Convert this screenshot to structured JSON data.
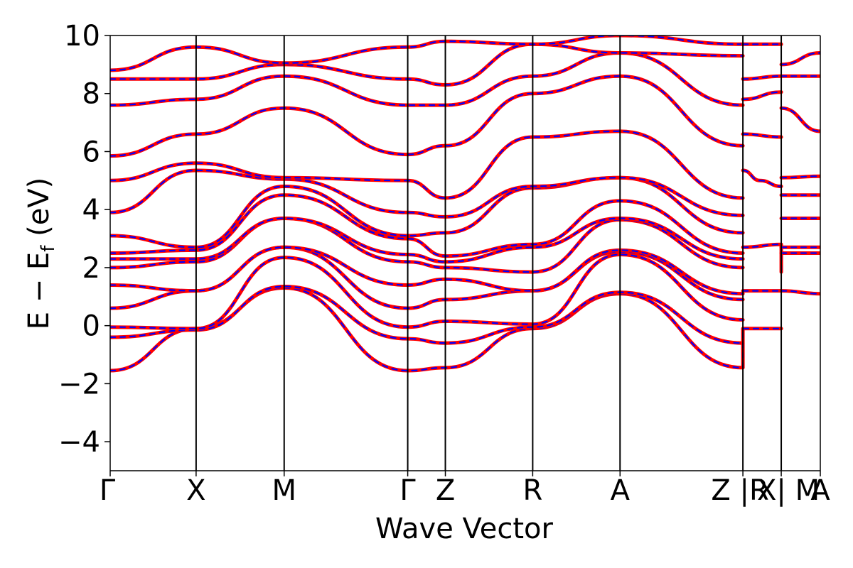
{
  "chart_data": {
    "type": "line",
    "title": "",
    "xlabel": "Wave Vector",
    "ylabel": "E − E_f (eV)",
    "ylabel_main": "E − E",
    "ylabel_sub": "f",
    "ylabel_unit": " (eV)",
    "ylim": [
      -5,
      10
    ],
    "yticks": [
      -4,
      -2,
      0,
      2,
      4,
      6,
      8,
      10
    ],
    "ytick_labels": [
      "−4",
      "−2",
      "0",
      "2",
      "4",
      "6",
      "8",
      "10"
    ],
    "xlim": [
      0,
      1
    ],
    "kpoint_positions": [
      0,
      0.121,
      0.245,
      0.419,
      0.472,
      0.595,
      0.718,
      0.891,
      0.945,
      1.0
    ],
    "kpoint_labels": [
      "Γ",
      "X",
      "M",
      "Γ",
      "Z",
      "R",
      "A",
      "Z |R",
      "X| M",
      "A"
    ],
    "grid": false,
    "legend": "none",
    "colors": {
      "series_red": "#ff0000",
      "series_blue": "#0000ff",
      "vlines": "#000000"
    },
    "series": [
      {
        "color": "#ff0000",
        "style": "solid"
      },
      {
        "color": "#0000ff",
        "style": "dashed"
      }
    ],
    "bands": [
      [
        [
          0,
          -1.55
        ],
        [
          0.121,
          -0.1
        ],
        [
          0.245,
          1.3
        ],
        [
          0.419,
          -1.55
        ],
        [
          0.472,
          -1.45
        ],
        [
          0.595,
          -0.1
        ],
        [
          0.718,
          1.1
        ],
        [
          0.891,
          -1.45
        ]
      ],
      [
        [
          0,
          -0.4
        ],
        [
          0.121,
          -0.15
        ],
        [
          0.245,
          1.35
        ],
        [
          0.419,
          -0.45
        ],
        [
          0.472,
          -0.6
        ],
        [
          0.595,
          -0.05
        ],
        [
          0.718,
          1.15
        ],
        [
          0.891,
          -0.6
        ]
      ],
      [
        [
          0,
          -0.05
        ],
        [
          0.121,
          -0.1
        ],
        [
          0.245,
          2.35
        ],
        [
          0.419,
          -0.05
        ],
        [
          0.472,
          0.15
        ],
        [
          0.595,
          0.05
        ],
        [
          0.718,
          2.45
        ],
        [
          0.891,
          0.2
        ]
      ],
      [
        [
          0,
          0.6
        ],
        [
          0.121,
          1.2
        ],
        [
          0.245,
          2.7
        ],
        [
          0.419,
          0.6
        ],
        [
          0.472,
          0.9
        ],
        [
          0.595,
          1.2
        ],
        [
          0.718,
          2.55
        ],
        [
          0.891,
          0.9
        ]
      ],
      [
        [
          0,
          1.4
        ],
        [
          0.121,
          1.2
        ],
        [
          0.245,
          2.7
        ],
        [
          0.419,
          1.4
        ],
        [
          0.472,
          1.6
        ],
        [
          0.595,
          1.2
        ],
        [
          0.718,
          2.6
        ],
        [
          0.891,
          1.1
        ]
      ],
      [
        [
          0,
          2.0
        ],
        [
          0.121,
          2.2
        ],
        [
          0.245,
          3.7
        ],
        [
          0.419,
          2.2
        ],
        [
          0.472,
          2.0
        ],
        [
          0.595,
          1.85
        ],
        [
          0.718,
          3.65
        ],
        [
          0.891,
          2.0
        ]
      ],
      [
        [
          0,
          2.3
        ],
        [
          0.121,
          2.3
        ],
        [
          0.245,
          3.7
        ],
        [
          0.419,
          2.45
        ],
        [
          0.472,
          2.2
        ],
        [
          0.595,
          2.7
        ],
        [
          0.718,
          3.7
        ],
        [
          0.891,
          2.3
        ]
      ],
      [
        [
          0,
          2.5
        ],
        [
          0.121,
          2.6
        ],
        [
          0.245,
          4.5
        ],
        [
          0.419,
          3.0
        ],
        [
          0.472,
          2.4
        ],
        [
          0.595,
          2.8
        ],
        [
          0.718,
          4.3
        ],
        [
          0.891,
          2.5
        ]
      ],
      [
        [
          0,
          3.1
        ],
        [
          0.121,
          2.7
        ],
        [
          0.245,
          4.8
        ],
        [
          0.419,
          3.1
        ],
        [
          0.472,
          3.2
        ],
        [
          0.595,
          4.75
        ],
        [
          0.718,
          5.1
        ],
        [
          0.891,
          3.2
        ]
      ],
      [
        [
          0,
          3.9
        ],
        [
          0.121,
          5.35
        ],
        [
          0.245,
          5.05
        ],
        [
          0.419,
          3.9
        ],
        [
          0.472,
          3.75
        ],
        [
          0.595,
          4.8
        ],
        [
          0.718,
          5.1
        ],
        [
          0.891,
          3.8
        ]
      ],
      [
        [
          0,
          5.0
        ],
        [
          0.121,
          5.6
        ],
        [
          0.245,
          5.1
        ],
        [
          0.419,
          5.0
        ],
        [
          0.472,
          4.4
        ],
        [
          0.595,
          6.5
        ],
        [
          0.718,
          6.7
        ],
        [
          0.891,
          4.4
        ]
      ],
      [
        [
          0,
          5.85
        ],
        [
          0.121,
          6.6
        ],
        [
          0.245,
          7.5
        ],
        [
          0.419,
          5.9
        ],
        [
          0.472,
          6.2
        ],
        [
          0.595,
          8.0
        ],
        [
          0.718,
          8.6
        ],
        [
          0.891,
          6.2
        ]
      ],
      [
        [
          0,
          7.6
        ],
        [
          0.121,
          7.8
        ],
        [
          0.245,
          8.6
        ],
        [
          0.419,
          7.6
        ],
        [
          0.472,
          7.6
        ],
        [
          0.595,
          8.6
        ],
        [
          0.718,
          9.4
        ],
        [
          0.891,
          7.6
        ]
      ],
      [
        [
          0,
          8.5
        ],
        [
          0.121,
          8.5
        ],
        [
          0.245,
          9.0
        ],
        [
          0.419,
          8.5
        ],
        [
          0.472,
          8.3
        ],
        [
          0.595,
          9.7
        ],
        [
          0.718,
          9.4
        ],
        [
          0.891,
          9.3
        ]
      ],
      [
        [
          0,
          8.8
        ],
        [
          0.121,
          9.6
        ],
        [
          0.245,
          9.05
        ],
        [
          0.419,
          9.6
        ],
        [
          0.472,
          9.8
        ],
        [
          0.595,
          9.7
        ],
        [
          0.718,
          10.0
        ],
        [
          0.891,
          9.7
        ]
      ],
      [
        [
          0.891,
          -1.45
        ],
        [
          0.891,
          -0.1
        ],
        [
          0.945,
          -0.1
        ]
      ],
      [
        [
          0.891,
          1.2
        ],
        [
          0.945,
          1.2
        ]
      ],
      [
        [
          0.891,
          2.7
        ],
        [
          0.945,
          2.8
        ],
        [
          0.945,
          1.85
        ]
      ],
      [
        [
          0.891,
          5.35
        ],
        [
          0.915,
          5.0
        ],
        [
          0.945,
          4.8
        ]
      ],
      [
        [
          0.891,
          6.6
        ],
        [
          0.945,
          6.5
        ]
      ],
      [
        [
          0.891,
          7.8
        ],
        [
          0.945,
          8.05
        ]
      ],
      [
        [
          0.891,
          8.5
        ],
        [
          0.945,
          8.6
        ]
      ],
      [
        [
          0.891,
          9.7
        ],
        [
          0.945,
          9.7
        ]
      ],
      [
        [
          0.945,
          1.2
        ],
        [
          1.0,
          1.1
        ]
      ],
      [
        [
          0.945,
          2.5
        ],
        [
          1.0,
          2.5
        ]
      ],
      [
        [
          0.945,
          2.7
        ],
        [
          1.0,
          2.7
        ]
      ],
      [
        [
          0.945,
          3.7
        ],
        [
          1.0,
          3.7
        ]
      ],
      [
        [
          0.945,
          4.5
        ],
        [
          1.0,
          4.5
        ]
      ],
      [
        [
          0.945,
          5.1
        ],
        [
          1.0,
          5.15
        ]
      ],
      [
        [
          0.945,
          7.5
        ],
        [
          1.0,
          6.7
        ]
      ],
      [
        [
          0.945,
          8.6
        ],
        [
          1.0,
          8.6
        ]
      ],
      [
        [
          0.945,
          9.0
        ],
        [
          1.0,
          9.4
        ]
      ]
    ]
  }
}
